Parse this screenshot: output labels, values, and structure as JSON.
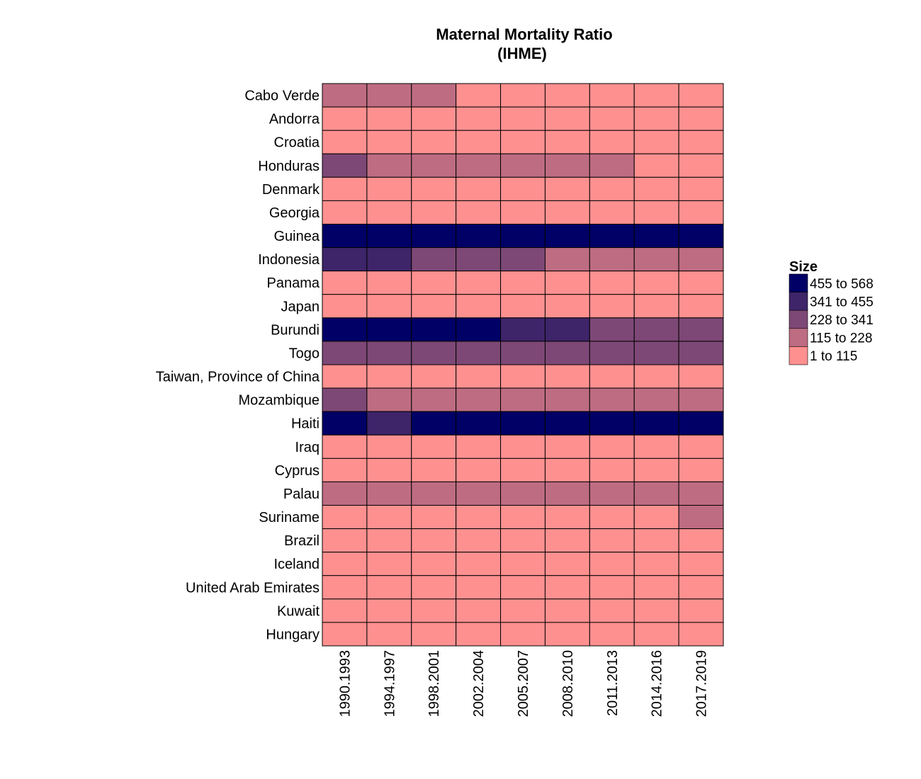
{
  "chart_data": {
    "type": "heatmap",
    "title": "Maternal Mortality Ratio",
    "subtitle": "(IHME)",
    "xlabel": "",
    "ylabel": "",
    "x_categories": [
      "1990.1993",
      "1994.1997",
      "1998.2001",
      "2002.2004",
      "2005.2007",
      "2008.2010",
      "2011.2013",
      "2014.2016",
      "2017.2019"
    ],
    "y_categories": [
      "Cabo Verde",
      "Andorra",
      "Croatia",
      "Honduras",
      "Denmark",
      "Georgia",
      "Guinea",
      "Indonesia",
      "Panama",
      "Japan",
      "Burundi",
      "Togo",
      "Taiwan, Province of China",
      "Mozambique",
      "Haiti",
      "Iraq",
      "Cyprus",
      "Palau",
      "Suriname",
      "Brazil",
      "Iceland",
      "United Arab Emirates",
      "Kuwait",
      "Hungary"
    ],
    "legend": {
      "title": "Size",
      "position": "right",
      "bins": [
        {
          "label": "455 to 568",
          "color": "#000066"
        },
        {
          "label": "341 to 455",
          "color": "#3e2469"
        },
        {
          "label": "228 to 341",
          "color": "#7d4876"
        },
        {
          "label": "115 to 228",
          "color": "#be6c82"
        },
        {
          "label": "1 to 115",
          "color": "#ff9090"
        }
      ]
    },
    "bin_index_matrix": [
      [
        3,
        3,
        3,
        4,
        4,
        4,
        4,
        4,
        4
      ],
      [
        4,
        4,
        4,
        4,
        4,
        4,
        4,
        4,
        4
      ],
      [
        4,
        4,
        4,
        4,
        4,
        4,
        4,
        4,
        4
      ],
      [
        2,
        3,
        3,
        3,
        3,
        3,
        3,
        4,
        4
      ],
      [
        4,
        4,
        4,
        4,
        4,
        4,
        4,
        4,
        4
      ],
      [
        4,
        4,
        4,
        4,
        4,
        4,
        4,
        4,
        4
      ],
      [
        0,
        0,
        0,
        0,
        0,
        0,
        0,
        0,
        0
      ],
      [
        1,
        1,
        2,
        2,
        2,
        3,
        3,
        3,
        3
      ],
      [
        4,
        4,
        4,
        4,
        4,
        4,
        4,
        4,
        4
      ],
      [
        4,
        4,
        4,
        4,
        4,
        4,
        4,
        4,
        4
      ],
      [
        0,
        0,
        0,
        0,
        1,
        1,
        2,
        2,
        2
      ],
      [
        2,
        2,
        2,
        2,
        2,
        2,
        2,
        2,
        2
      ],
      [
        4,
        4,
        4,
        4,
        4,
        4,
        4,
        4,
        4
      ],
      [
        2,
        3,
        3,
        3,
        3,
        3,
        3,
        3,
        3
      ],
      [
        0,
        1,
        0,
        0,
        0,
        0,
        0,
        0,
        0
      ],
      [
        4,
        4,
        4,
        4,
        4,
        4,
        4,
        4,
        4
      ],
      [
        4,
        4,
        4,
        4,
        4,
        4,
        4,
        4,
        4
      ],
      [
        3,
        3,
        3,
        3,
        3,
        3,
        3,
        3,
        3
      ],
      [
        4,
        4,
        4,
        4,
        4,
        4,
        4,
        4,
        3
      ],
      [
        4,
        4,
        4,
        4,
        4,
        4,
        4,
        4,
        4
      ],
      [
        4,
        4,
        4,
        4,
        4,
        4,
        4,
        4,
        4
      ],
      [
        4,
        4,
        4,
        4,
        4,
        4,
        4,
        4,
        4
      ],
      [
        4,
        4,
        4,
        4,
        4,
        4,
        4,
        4,
        4
      ],
      [
        4,
        4,
        4,
        4,
        4,
        4,
        4,
        4,
        4
      ]
    ],
    "grid": false
  }
}
